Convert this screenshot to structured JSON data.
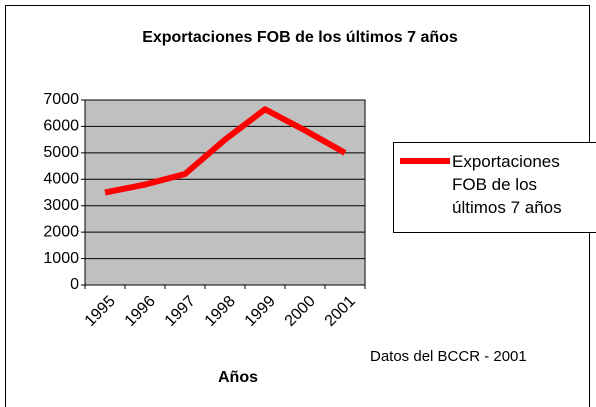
{
  "chart_data": {
    "type": "line",
    "title": "Exportaciones FOB de los últimos 7 años",
    "x_label": "Años",
    "annotation": "Datos del BCCR - 2001",
    "categories": [
      "1995",
      "1996",
      "1997",
      "1998",
      "1999",
      "2000",
      "2001"
    ],
    "series": [
      {
        "name": "Exportaciones FOB de los últimos 7 años",
        "color": "#ff0000",
        "values": [
          3500,
          3800,
          4200,
          5500,
          6650,
          5850,
          5000
        ]
      }
    ],
    "ylim": [
      0,
      7000
    ],
    "yticks": [
      0,
      1000,
      2000,
      3000,
      4000,
      5000,
      6000,
      7000
    ],
    "grid": true,
    "legend": "right",
    "plot_background": "#c0c0c0"
  }
}
